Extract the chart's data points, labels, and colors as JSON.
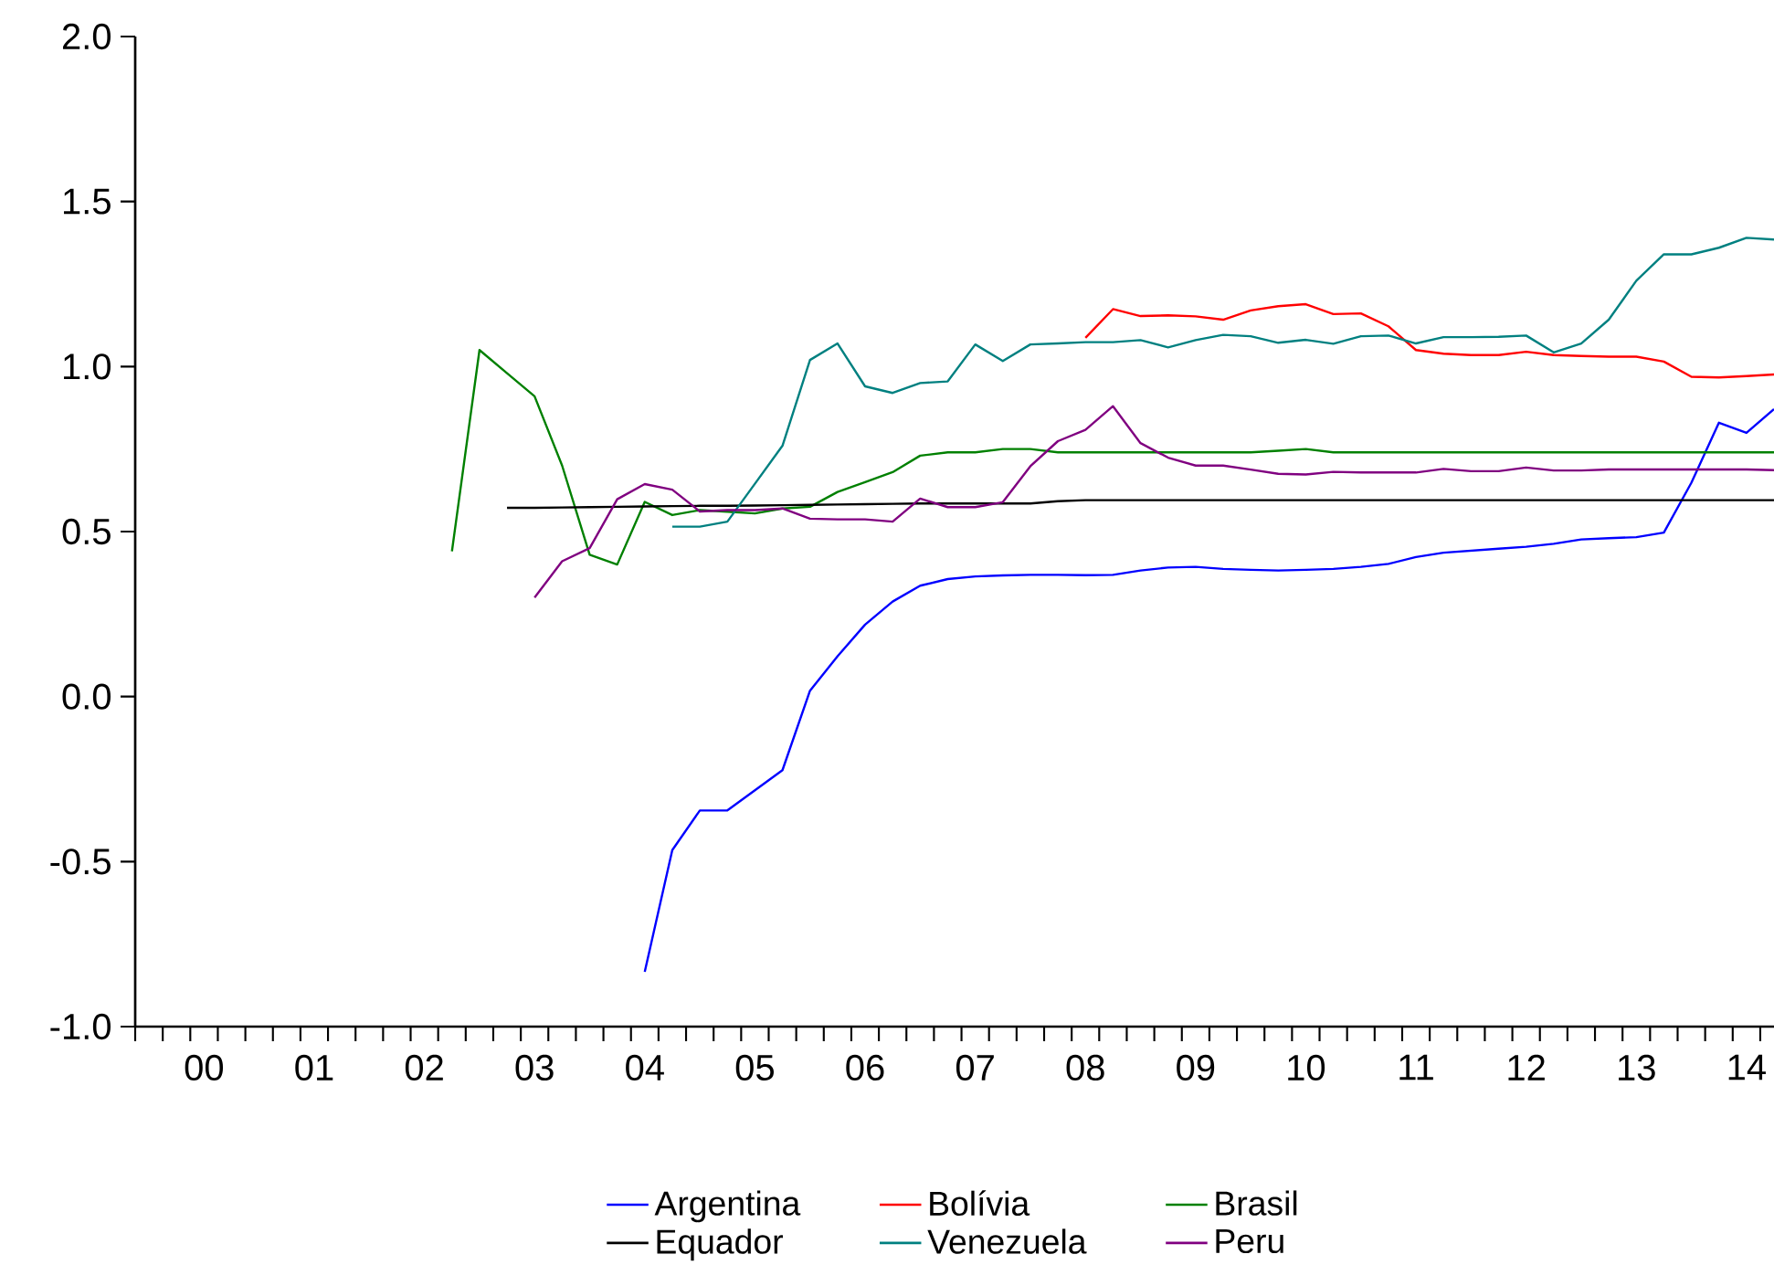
{
  "chart_data": {
    "type": "line",
    "legend": "bottom",
    "marker": "none",
    "line_style": "solid",
    "grid": false,
    "categories": [
      null,
      null,
      "00",
      null,
      null,
      null,
      "01",
      null,
      null,
      null,
      "02",
      null,
      null,
      null,
      "03",
      null,
      null,
      null,
      "04",
      null,
      null,
      null,
      "05",
      null,
      null,
      null,
      "06",
      null,
      null,
      null,
      "07",
      null,
      null,
      null,
      "08",
      null,
      null,
      null,
      "09",
      null,
      null,
      null,
      "10",
      null,
      null,
      null,
      "11",
      null,
      null,
      null,
      "12",
      null,
      null,
      null,
      "13",
      null,
      null,
      null,
      "14",
      null
    ],
    "ylim": [
      -1,
      2
    ],
    "yticks": [
      {
        "value": -1,
        "label": "-1.0"
      },
      {
        "value": -0.5,
        "label": "-0.5"
      },
      {
        "value": 0,
        "label": "0.0"
      },
      {
        "value": 0.5,
        "label": "0.5"
      },
      {
        "value": 1,
        "label": "1.0"
      },
      {
        "value": 1.5,
        "label": "1.5"
      },
      {
        "value": 2,
        "label": "2.0"
      }
    ],
    "series": [
      {
        "name": "Argentina",
        "color": "#0000ff",
        "values": [
          null,
          null,
          null,
          null,
          null,
          null,
          null,
          null,
          null,
          null,
          null,
          null,
          null,
          null,
          null,
          null,
          null,
          null,
          -0.834,
          -0.465,
          -0.345,
          -0.345,
          -0.284,
          -0.223,
          0.018,
          0.122,
          0.218,
          0.288,
          0.336,
          0.356,
          0.364,
          0.367,
          0.369,
          0.369,
          0.368,
          0.369,
          0.382,
          0.391,
          0.393,
          0.387,
          0.384,
          0.382,
          0.384,
          0.387,
          0.393,
          0.402,
          0.423,
          0.436,
          0.442,
          0.448,
          0.454,
          0.463,
          0.476,
          0.48,
          0.483,
          0.497,
          0.648,
          0.83,
          0.799,
          0.871
        ]
      },
      {
        "name": "Bolívia",
        "color": "#ff0000",
        "values": [
          null,
          null,
          null,
          null,
          null,
          null,
          null,
          null,
          null,
          null,
          null,
          null,
          null,
          null,
          null,
          null,
          null,
          null,
          null,
          null,
          null,
          null,
          null,
          null,
          null,
          null,
          null,
          null,
          null,
          null,
          null,
          null,
          null,
          null,
          1.087,
          1.174,
          1.153,
          1.155,
          1.152,
          1.142,
          1.17,
          1.183,
          1.189,
          1.159,
          1.161,
          1.122,
          1.05,
          1.039,
          1.035,
          1.035,
          1.045,
          1.035,
          1.032,
          1.03,
          1.03,
          1.015,
          0.969,
          0.967,
          0.971,
          0.976
        ]
      },
      {
        "name": "Brasil",
        "color": "#008000",
        "values": [
          null,
          null,
          null,
          null,
          null,
          null,
          null,
          null,
          null,
          null,
          null,
          0.44,
          1.05,
          0.98,
          0.91,
          0.7,
          0.43,
          0.4,
          0.59,
          0.55,
          0.565,
          0.56,
          0.555,
          0.57,
          0.575,
          0.62,
          0.65,
          0.68,
          0.73,
          0.74,
          0.74,
          0.75,
          0.75,
          0.74,
          0.74,
          0.74,
          0.74,
          0.74,
          0.74,
          0.74,
          0.74,
          0.745,
          0.75,
          0.74,
          0.74,
          0.74,
          0.74,
          0.74,
          0.74,
          0.74,
          0.74,
          0.74,
          0.74,
          0.74,
          0.74,
          0.74,
          0.74,
          0.74,
          0.74,
          0.74
        ]
      },
      {
        "name": "Equador",
        "color": "#000000",
        "values": [
          null,
          null,
          null,
          null,
          null,
          null,
          null,
          null,
          null,
          null,
          null,
          null,
          null,
          0.572,
          0.572,
          0.573,
          0.574,
          0.575,
          0.576,
          0.577,
          0.578,
          0.578,
          0.579,
          0.58,
          0.581,
          0.582,
          0.583,
          0.584,
          0.585,
          0.585,
          0.585,
          0.585,
          0.585,
          0.592,
          0.595,
          0.595,
          0.595,
          0.595,
          0.595,
          0.595,
          0.595,
          0.595,
          0.595,
          0.595,
          0.595,
          0.595,
          0.595,
          0.595,
          0.595,
          0.595,
          0.595,
          0.595,
          0.595,
          0.595,
          0.595,
          0.595,
          0.595,
          0.595,
          0.595,
          0.595
        ]
      },
      {
        "name": "Venezuela",
        "color": "#008080",
        "values": [
          null,
          null,
          null,
          null,
          null,
          null,
          null,
          null,
          null,
          null,
          null,
          null,
          null,
          null,
          null,
          null,
          null,
          null,
          null,
          0.515,
          0.515,
          0.53,
          0.645,
          0.76,
          1.02,
          1.07,
          0.94,
          0.92,
          0.95,
          0.955,
          1.067,
          1.017,
          1.067,
          1.07,
          1.074,
          1.074,
          1.08,
          1.058,
          1.08,
          1.096,
          1.092,
          1.072,
          1.081,
          1.069,
          1.092,
          1.094,
          1.07,
          1.089,
          1.089,
          1.09,
          1.094,
          1.043,
          1.07,
          1.142,
          1.26,
          1.34,
          1.34,
          1.36,
          1.39,
          1.385
        ]
      },
      {
        "name": "Peru",
        "color": "#800080",
        "values": [
          null,
          null,
          null,
          null,
          null,
          null,
          null,
          null,
          null,
          null,
          null,
          null,
          null,
          null,
          0.3,
          0.41,
          0.45,
          0.598,
          0.644,
          0.627,
          0.561,
          0.565,
          0.565,
          0.57,
          0.539,
          0.537,
          0.537,
          0.53,
          0.6,
          0.574,
          0.574,
          0.589,
          0.698,
          0.774,
          0.808,
          0.88,
          0.768,
          0.724,
          0.7,
          0.7,
          0.688,
          0.675,
          0.673,
          0.681,
          0.679,
          0.679,
          0.679,
          0.69,
          0.683,
          0.683,
          0.694,
          0.685,
          0.685,
          0.688,
          0.688,
          0.688,
          0.688,
          0.688,
          0.688,
          0.686
        ]
      }
    ]
  }
}
